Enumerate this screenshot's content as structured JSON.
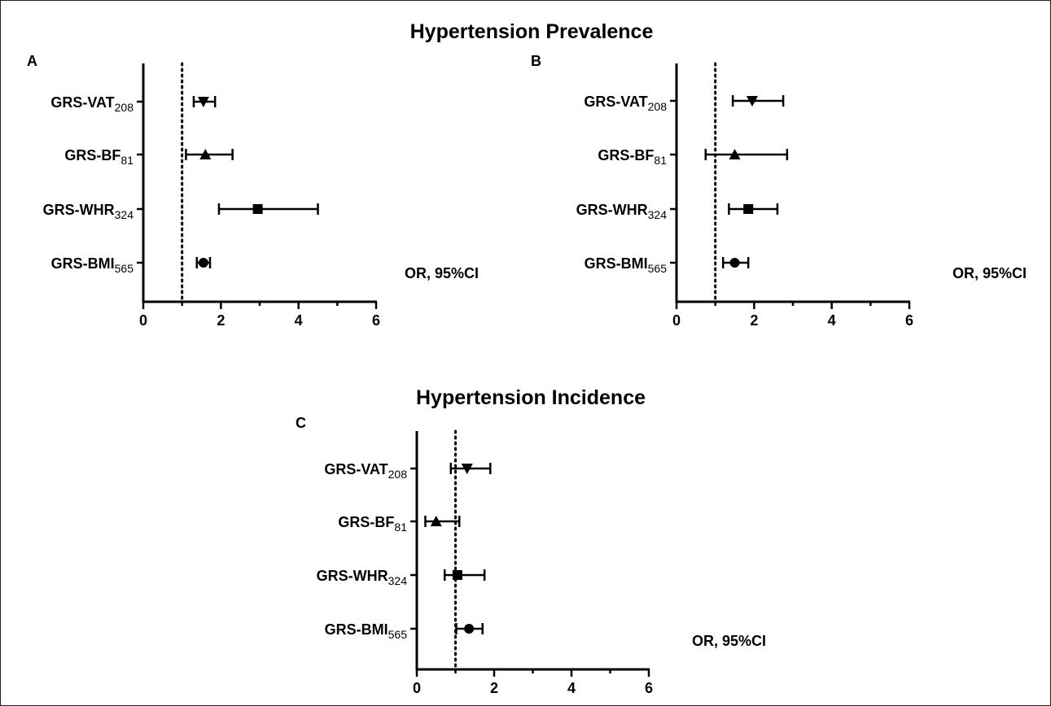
{
  "titles": {
    "prevalence": "Hypertension Prevalence",
    "incidence": "Hypertension Incidence"
  },
  "chart_data": [
    {
      "type": "scatter",
      "panel": "A",
      "xlabel": "OR, 95%CI",
      "xlim": [
        0,
        6
      ],
      "xticks": [
        "0",
        "2",
        "4",
        "6"
      ],
      "reference_line": 1,
      "categories": [
        {
          "base": "GRS-VAT",
          "sub": "208",
          "marker": "triangle-down",
          "or": 1.55,
          "lo": 1.3,
          "hi": 1.85
        },
        {
          "base": "GRS-BF",
          "sub": "81",
          "marker": "triangle-up",
          "or": 1.6,
          "lo": 1.1,
          "hi": 2.3
        },
        {
          "base": "GRS-WHR",
          "sub": "324",
          "marker": "square",
          "or": 2.95,
          "lo": 1.95,
          "hi": 4.5
        },
        {
          "base": "GRS-BMI",
          "sub": "565",
          "marker": "circle",
          "or": 1.55,
          "lo": 1.38,
          "hi": 1.72
        }
      ]
    },
    {
      "type": "scatter",
      "panel": "B",
      "xlabel": "OR, 95%CI",
      "xlim": [
        0,
        6
      ],
      "xticks": [
        "0",
        "2",
        "4",
        "6"
      ],
      "reference_line": 1,
      "categories": [
        {
          "base": "GRS-VAT",
          "sub": "208",
          "marker": "triangle-down",
          "or": 1.95,
          "lo": 1.45,
          "hi": 2.75
        },
        {
          "base": "GRS-BF",
          "sub": "81",
          "marker": "triangle-up",
          "or": 1.5,
          "lo": 0.75,
          "hi": 2.85
        },
        {
          "base": "GRS-WHR",
          "sub": "324",
          "marker": "square",
          "or": 1.85,
          "lo": 1.35,
          "hi": 2.6
        },
        {
          "base": "GRS-BMI",
          "sub": "565",
          "marker": "circle",
          "or": 1.5,
          "lo": 1.2,
          "hi": 1.85
        }
      ]
    },
    {
      "type": "scatter",
      "panel": "C",
      "xlabel": "OR, 95%CI",
      "xlim": [
        0,
        6
      ],
      "xticks": [
        "0",
        "2",
        "4",
        "6"
      ],
      "reference_line": 1,
      "categories": [
        {
          "base": "GRS-VAT",
          "sub": "208",
          "marker": "triangle-down",
          "or": 1.3,
          "lo": 0.88,
          "hi": 1.9
        },
        {
          "base": "GRS-BF",
          "sub": "81",
          "marker": "triangle-up",
          "or": 0.5,
          "lo": 0.22,
          "hi": 1.1
        },
        {
          "base": "GRS-WHR",
          "sub": "324",
          "marker": "square",
          "or": 1.05,
          "lo": 0.72,
          "hi": 1.75
        },
        {
          "base": "GRS-BMI",
          "sub": "565",
          "marker": "circle",
          "or": 1.35,
          "lo": 1.02,
          "hi": 1.7
        }
      ]
    }
  ]
}
